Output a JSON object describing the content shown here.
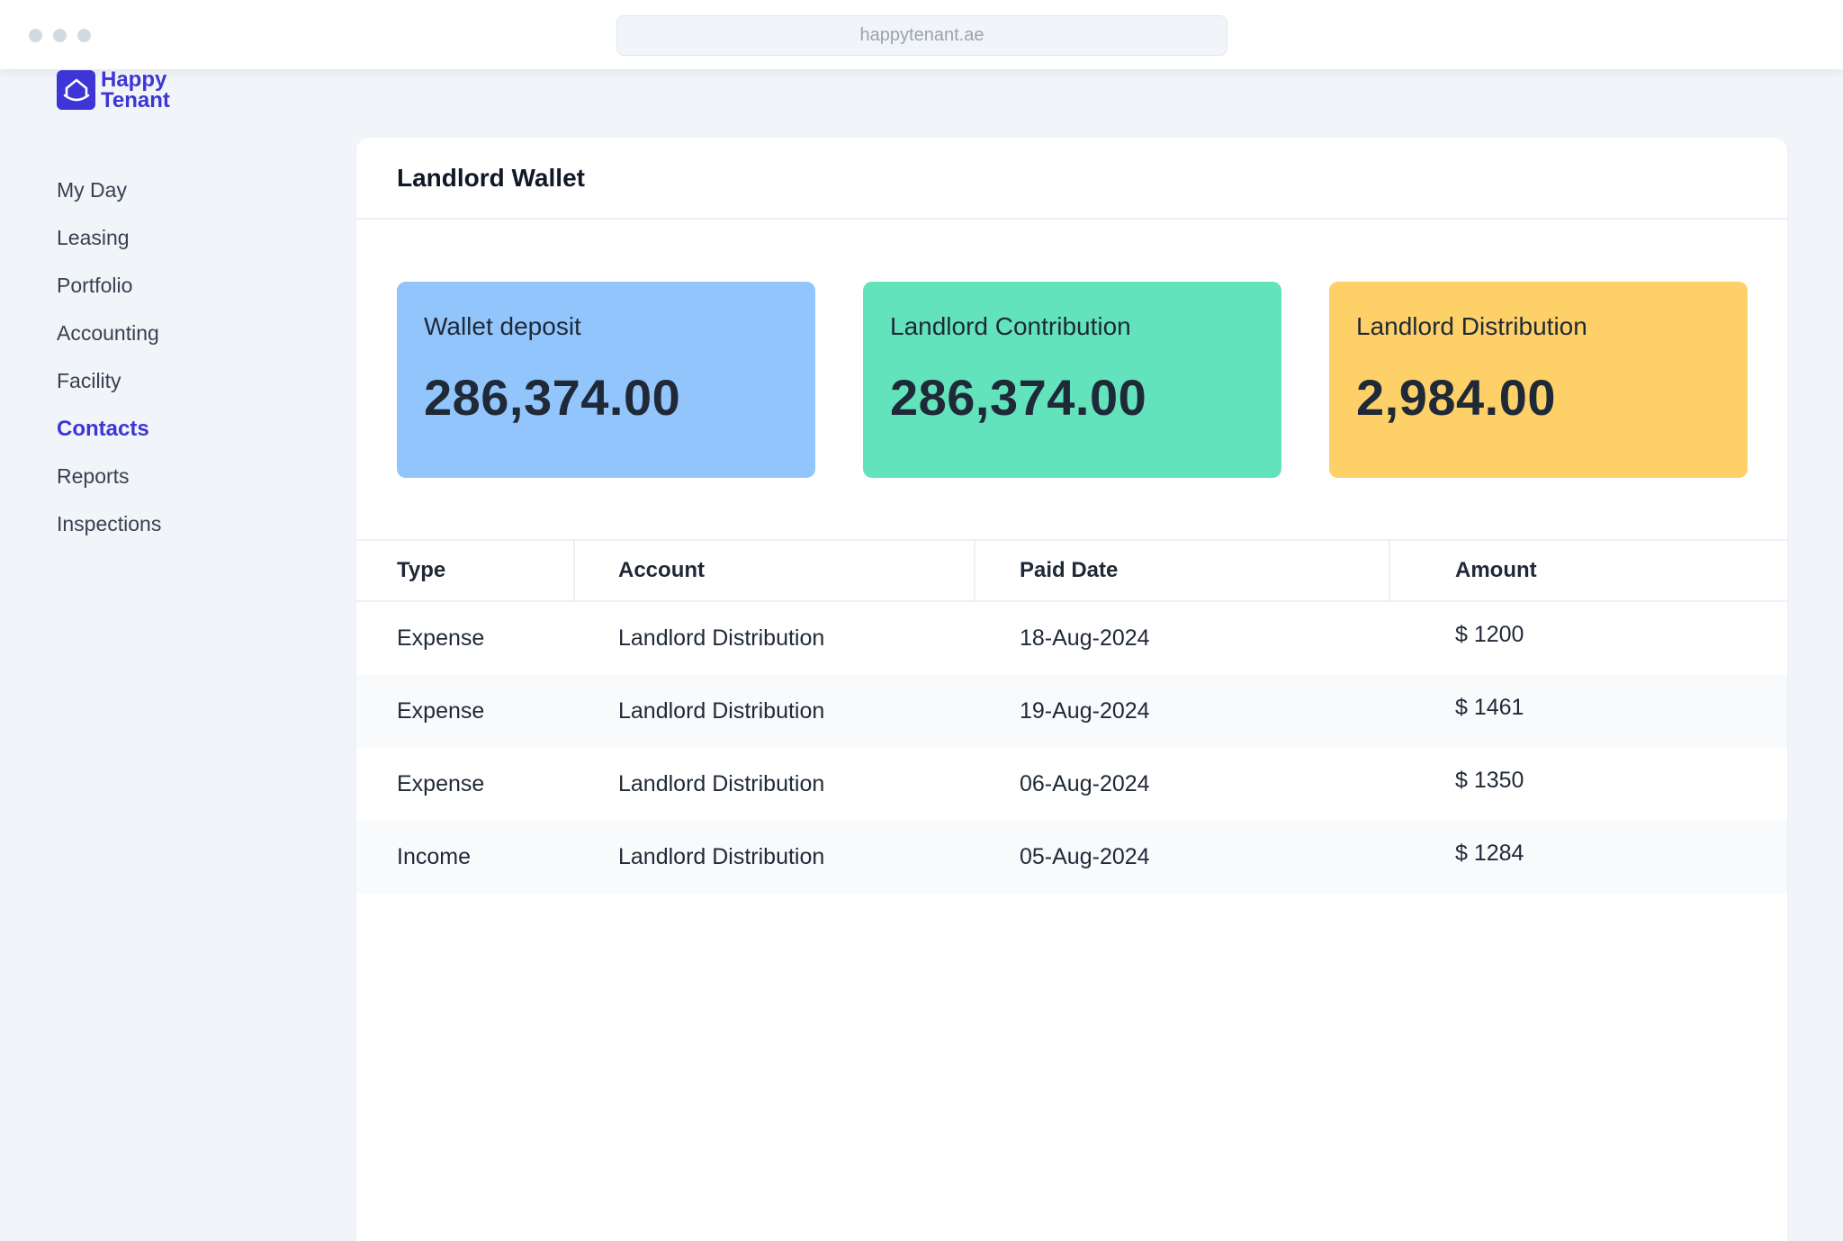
{
  "browser": {
    "url": "happytenant.ae"
  },
  "brand": {
    "line1": "Happy",
    "line2": "Tenant",
    "color": "#3d35d6"
  },
  "sidebar": {
    "items": [
      {
        "label": "My Day",
        "active": false
      },
      {
        "label": "Leasing",
        "active": false
      },
      {
        "label": "Portfolio",
        "active": false
      },
      {
        "label": "Accounting",
        "active": false
      },
      {
        "label": "Facility",
        "active": false
      },
      {
        "label": "Contacts",
        "active": true
      },
      {
        "label": "Reports",
        "active": false
      },
      {
        "label": "Inspections",
        "active": false
      }
    ]
  },
  "panel": {
    "title": "Landlord Wallet"
  },
  "cards": [
    {
      "label": "Wallet deposit",
      "value": "286,374.00",
      "color": "#93c5fd"
    },
    {
      "label": "Landlord Contribution",
      "value": "286,374.00",
      "color": "#62e3bb"
    },
    {
      "label": "Landlord Distribution",
      "value": "2,984.00",
      "color": "#fdd068"
    }
  ],
  "table": {
    "headers": {
      "type": "Type",
      "account": "Account",
      "paid_date": "Paid Date",
      "amount": "Amount"
    },
    "rows": [
      {
        "type": "Expense",
        "account": "Landlord Distribution",
        "paid_date": "18-Aug-2024",
        "amount": "$ 1200"
      },
      {
        "type": "Expense",
        "account": "Landlord Distribution",
        "paid_date": "19-Aug-2024",
        "amount": "$ 1461"
      },
      {
        "type": "Expense",
        "account": "Landlord Distribution",
        "paid_date": "06-Aug-2024",
        "amount": "$ 1350"
      },
      {
        "type": "Income",
        "account": "Landlord Distribution",
        "paid_date": "05-Aug-2024",
        "amount": "$ 1284"
      }
    ]
  }
}
